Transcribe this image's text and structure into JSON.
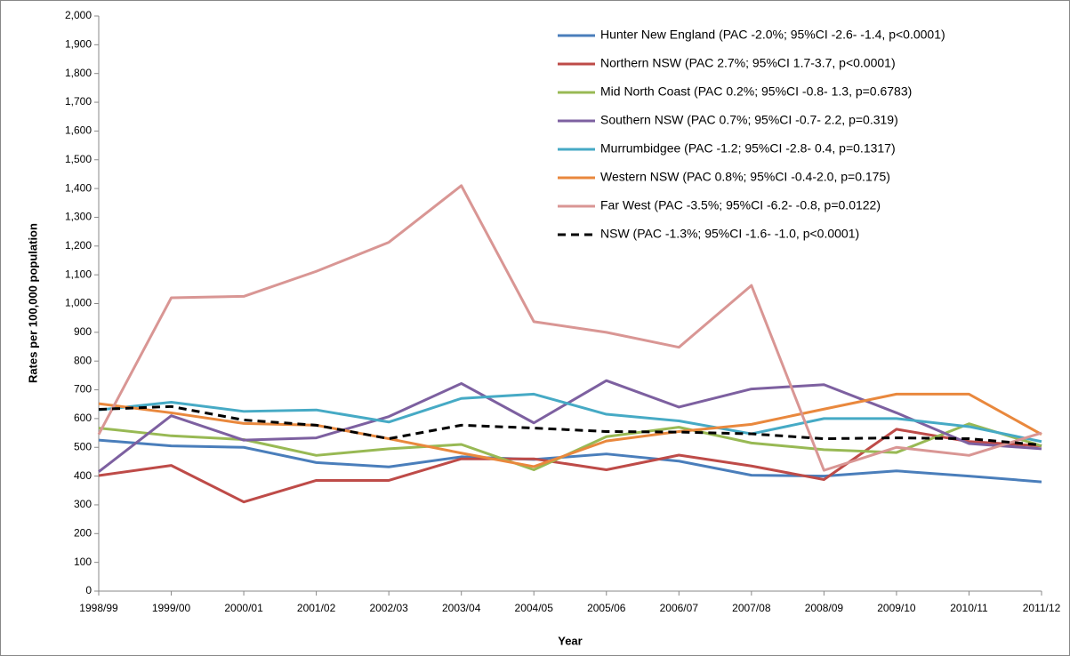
{
  "chart_data": {
    "type": "line",
    "x_label": "Year",
    "y_label": "Rates per 100,000 population",
    "categories": [
      "1998/99",
      "1999/00",
      "2000/01",
      "2001/02",
      "2002/03",
      "2003/04",
      "2004/05",
      "2005/06",
      "2006/07",
      "2007/08",
      "2008/09",
      "2009/10",
      "2010/11",
      "2011/12"
    ],
    "ylim": [
      0,
      2000
    ],
    "yticks": [
      0,
      100,
      200,
      300,
      400,
      500,
      600,
      700,
      800,
      900,
      {
        "value": 1000,
        "label": "1,000"
      },
      {
        "value": 1100,
        "label": "1,100"
      },
      {
        "value": 1200,
        "label": "1,200"
      },
      {
        "value": 1300,
        "label": "1,300"
      },
      {
        "value": 1400,
        "label": "1,400"
      },
      {
        "value": 1500,
        "label": "1,500"
      },
      {
        "value": 1600,
        "label": "1,600"
      },
      {
        "value": 1700,
        "label": "1,700"
      },
      {
        "value": 1800,
        "label": "1,800"
      },
      {
        "value": 1900,
        "label": "1,900"
      },
      {
        "value": 2000,
        "label": "2,000"
      }
    ],
    "grid": false,
    "legend": "top-right",
    "series": [
      {
        "name": "Hunter New England (PAC -2.0%; 95%CI -2.6- -1.4, p<0.0001)",
        "color": "#4a7ebb",
        "values": [
          525,
          505,
          500,
          447,
          432,
          467,
          458,
          477,
          452,
          403,
          400,
          418,
          400,
          380
        ]
      },
      {
        "name": "Northern NSW (PAC 2.7%; 95%CI 1.7-3.7, p<0.0001)",
        "color": "#be4b48",
        "values": [
          402,
          437,
          310,
          385,
          385,
          460,
          460,
          422,
          473,
          435,
          388,
          563,
          520,
          505
        ]
      },
      {
        "name": "Mid North Coast (PAC 0.2%; 95%CI -0.8- 1.3, p=0.6783)",
        "color": "#98b954",
        "values": [
          567,
          540,
          527,
          472,
          495,
          510,
          422,
          537,
          570,
          515,
          492,
          482,
          582,
          505
        ]
      },
      {
        "name": "Southern NSW (PAC 0.7%; 95%CI -0.7- 2.2, p=0.319)",
        "color": "#7d60a0",
        "values": [
          415,
          610,
          525,
          533,
          607,
          722,
          585,
          732,
          640,
          703,
          718,
          620,
          513,
          495
        ]
      },
      {
        "name": "Murrumbidgee (PAC -1.2; 95%CI -2.8- 0.4, p=0.1317)",
        "color": "#46aac5",
        "values": [
          630,
          657,
          625,
          630,
          588,
          670,
          685,
          615,
          592,
          547,
          600,
          600,
          572,
          520
        ]
      },
      {
        "name": "Western NSW (PAC 0.8%; 95%CI -0.4-2.0, p=0.175)",
        "color": "#e9883d",
        "values": [
          652,
          620,
          583,
          577,
          530,
          480,
          433,
          522,
          555,
          580,
          633,
          685,
          685,
          545
        ]
      },
      {
        "name": "Far West (PAC -3.5%; 95%CI -6.2- -0.8, p=0.0122)",
        "color": "#d99694",
        "values": [
          545,
          1020,
          1025,
          1112,
          1213,
          1410,
          937,
          900,
          848,
          1063,
          420,
          500,
          472,
          550
        ]
      },
      {
        "name": "NSW  (PAC -1.3%; 95%CI -1.6- -1.0, p<0.0001)",
        "color": "#000000",
        "dashed": true,
        "values": [
          632,
          642,
          595,
          577,
          530,
          577,
          567,
          555,
          553,
          547,
          530,
          533,
          530,
          508
        ]
      }
    ]
  }
}
